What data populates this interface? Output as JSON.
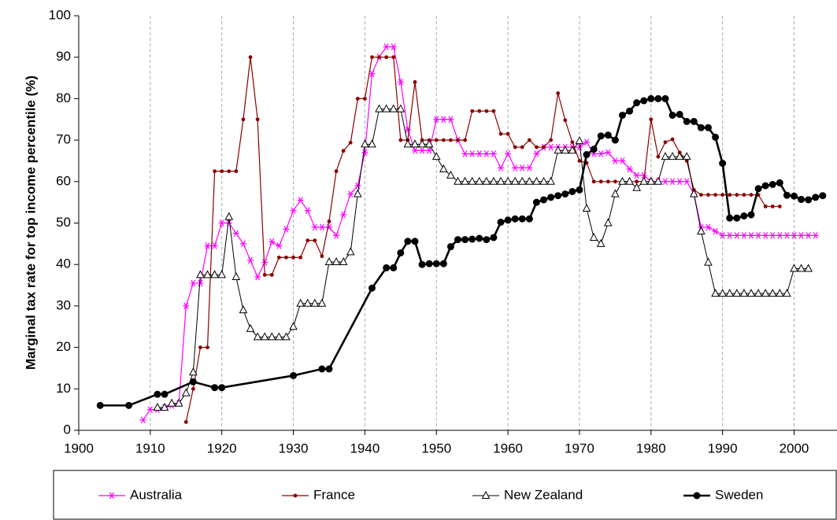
{
  "chart_data": {
    "type": "line",
    "ylabel": "Marginal tax rate for top income percentile (%)",
    "xlim": [
      1900,
      2006
    ],
    "ylim": [
      0,
      100
    ],
    "xticks": [
      1900,
      1910,
      1920,
      1930,
      1940,
      1950,
      1960,
      1970,
      1980,
      1990,
      2000
    ],
    "yticks": [
      0,
      10,
      20,
      30,
      40,
      50,
      60,
      70,
      80,
      90,
      100
    ],
    "grid": "x",
    "legend": "bottom",
    "series": [
      {
        "name": "Australia",
        "color": "#ff00ff",
        "marker": "asterisk",
        "x": [
          1909,
          1910,
          1911,
          1912,
          1913,
          1914,
          1915,
          1916,
          1917,
          1918,
          1919,
          1920,
          1921,
          1922,
          1923,
          1924,
          1925,
          1926,
          1927,
          1928,
          1929,
          1930,
          1931,
          1932,
          1933,
          1934,
          1935,
          1936,
          1937,
          1938,
          1939,
          1940,
          1941,
          1942,
          1943,
          1944,
          1945,
          1946,
          1947,
          1948,
          1949,
          1950,
          1951,
          1952,
          1953,
          1954,
          1955,
          1956,
          1957,
          1958,
          1959,
          1960,
          1961,
          1962,
          1963,
          1964,
          1965,
          1966,
          1967,
          1968,
          1969,
          1970,
          1971,
          1972,
          1973,
          1974,
          1975,
          1976,
          1977,
          1978,
          1979,
          1980,
          1981,
          1982,
          1983,
          1984,
          1985,
          1986,
          1987,
          1988,
          1989,
          1990,
          1991,
          1992,
          1993,
          1994,
          1995,
          1996,
          1997,
          1998,
          1999,
          2000,
          2001,
          2002,
          2003
        ],
        "values": [
          2.5,
          5,
          5,
          5.5,
          6,
          6.5,
          30,
          35.5,
          35.5,
          44.5,
          44.5,
          50,
          50,
          47.5,
          45,
          41,
          37,
          40.5,
          45.5,
          44.5,
          48.5,
          53,
          55.5,
          53,
          49,
          49,
          49,
          47,
          52,
          57,
          59,
          67,
          86,
          90,
          92.5,
          92.5,
          84,
          72.5,
          67.5,
          67.5,
          67.5,
          75,
          75,
          75,
          70,
          66.7,
          66.7,
          66.7,
          66.7,
          66.7,
          63.3,
          66.7,
          63.3,
          63.3,
          63.3,
          66.7,
          68.3,
          68.3,
          68.3,
          68.3,
          68.3,
          68.3,
          69.5,
          66.7,
          66.7,
          67,
          65,
          65,
          63,
          61.5,
          61.5,
          60,
          60,
          60,
          60,
          60,
          60,
          57,
          49,
          49,
          48,
          47,
          47,
          47,
          47,
          47,
          47,
          47,
          47,
          47,
          47,
          47,
          47,
          47,
          47
        ]
      },
      {
        "name": "France",
        "color": "#8b0000",
        "marker": "dot",
        "x": [
          1915,
          1916,
          1917,
          1918,
          1919,
          1920,
          1921,
          1922,
          1923,
          1924,
          1925,
          1926,
          1927,
          1928,
          1929,
          1930,
          1931,
          1932,
          1933,
          1934,
          1935,
          1936,
          1937,
          1938,
          1939,
          1940,
          1941,
          1942,
          1943,
          1944,
          1945,
          1946,
          1947,
          1948,
          1949,
          1950,
          1951,
          1952,
          1953,
          1954,
          1955,
          1956,
          1957,
          1958,
          1959,
          1960,
          1961,
          1962,
          1963,
          1964,
          1965,
          1966,
          1967,
          1968,
          1969,
          1970,
          1971,
          1972,
          1973,
          1974,
          1975,
          1976,
          1977,
          1978,
          1979,
          1980,
          1981,
          1982,
          1983,
          1984,
          1985,
          1986,
          1987,
          1988,
          1989,
          1990,
          1991,
          1992,
          1993,
          1994,
          1995,
          1996,
          1997,
          1998
        ],
        "values": [
          2,
          10,
          20,
          20,
          62.5,
          62.5,
          62.5,
          62.5,
          75,
          90,
          75,
          37.5,
          37.5,
          41.7,
          41.7,
          41.7,
          41.7,
          45.8,
          45.8,
          42,
          50.4,
          62.5,
          67.4,
          69.4,
          80,
          80,
          90,
          90,
          90,
          90,
          70,
          70,
          84,
          70,
          70,
          70,
          70,
          70,
          70,
          70,
          77,
          77,
          77,
          77,
          71.5,
          71.5,
          68.3,
          68.3,
          70,
          68.3,
          68.3,
          70,
          81.3,
          74.8,
          69.5,
          65,
          64.5,
          60,
          60,
          60,
          60,
          60,
          60,
          60,
          60,
          75,
          66,
          69.5,
          70.2,
          67,
          65,
          58,
          56.8,
          56.8,
          56.8,
          56.8,
          56.8,
          56.8,
          56.8,
          56.8,
          56.8,
          54,
          54,
          54
        ]
      },
      {
        "name": "New Zealand",
        "color": "#000000",
        "marker": "triangle",
        "x": [
          1911,
          1912,
          1913,
          1914,
          1915,
          1916,
          1917,
          1918,
          1919,
          1920,
          1921,
          1922,
          1923,
          1924,
          1925,
          1926,
          1927,
          1928,
          1929,
          1930,
          1931,
          1932,
          1933,
          1934,
          1935,
          1936,
          1937,
          1938,
          1939,
          1940,
          1941,
          1942,
          1943,
          1944,
          1945,
          1946,
          1947,
          1948,
          1949,
          1950,
          1951,
          1952,
          1953,
          1954,
          1955,
          1956,
          1957,
          1958,
          1959,
          1960,
          1961,
          1962,
          1963,
          1964,
          1965,
          1966,
          1967,
          1968,
          1969,
          1970,
          1971,
          1972,
          1973,
          1974,
          1975,
          1976,
          1977,
          1978,
          1979,
          1980,
          1981,
          1982,
          1983,
          1984,
          1985,
          1986,
          1987,
          1988,
          1989,
          1990,
          1991,
          1992,
          1993,
          1994,
          1995,
          1996,
          1997,
          1998,
          1999,
          2000,
          2001,
          2002
        ],
        "values": [
          5.5,
          5.5,
          6.5,
          6.5,
          9,
          14,
          37.5,
          37.5,
          37.5,
          37.5,
          51.5,
          37,
          29,
          24.5,
          22.5,
          22.5,
          22.5,
          22.5,
          22.5,
          25,
          30.6,
          30.6,
          30.6,
          30.6,
          40.6,
          40.6,
          40.6,
          43,
          57,
          69,
          69,
          77.5,
          77.5,
          77.5,
          77.5,
          69,
          69,
          69,
          69,
          66,
          63,
          61.5,
          60,
          60,
          60,
          60,
          60,
          60,
          60,
          60,
          60,
          60,
          60,
          60,
          60,
          60,
          67.5,
          67.5,
          67.5,
          69.8,
          53.5,
          46.5,
          45,
          50,
          57,
          60,
          60,
          58.5,
          60,
          60,
          60,
          66,
          66,
          66,
          66,
          57,
          48,
          40.5,
          33,
          33,
          33,
          33,
          33,
          33,
          33,
          33,
          33,
          33,
          33,
          39,
          39,
          39
        ]
      },
      {
        "name": "Sweden",
        "color": "#000000",
        "marker": "circle",
        "x": [
          1903,
          1907,
          1911,
          1912,
          1916,
          1919,
          1920,
          1930,
          1934,
          1935,
          1941,
          1943,
          1944,
          1945,
          1946,
          1947,
          1948,
          1949,
          1950,
          1951,
          1952,
          1953,
          1954,
          1955,
          1956,
          1957,
          1958,
          1959,
          1960,
          1961,
          1962,
          1963,
          1964,
          1965,
          1966,
          1967,
          1968,
          1969,
          1970,
          1971,
          1972,
          1973,
          1974,
          1975,
          1976,
          1977,
          1978,
          1979,
          1980,
          1981,
          1982,
          1983,
          1984,
          1985,
          1986,
          1987,
          1988,
          1989,
          1990,
          1991,
          1992,
          1993,
          1994,
          1995,
          1996,
          1997,
          1998,
          1999,
          2000,
          2001,
          2002,
          2003,
          2004
        ],
        "values": [
          6,
          6,
          8.7,
          8.7,
          11.7,
          10.3,
          10.3,
          13.2,
          14.8,
          14.8,
          34.3,
          39.2,
          39.2,
          42.8,
          45.6,
          45.6,
          40,
          40.2,
          40.2,
          40.2,
          44.3,
          46,
          46,
          46.1,
          46.3,
          46,
          46.5,
          50.2,
          50.7,
          51,
          51,
          51,
          55,
          55.6,
          56.2,
          56.6,
          57,
          57.6,
          58,
          66.5,
          67.8,
          71,
          71.2,
          70,
          76,
          77,
          79,
          79.5,
          80,
          80,
          80,
          76,
          76.2,
          74.5,
          74.5,
          73,
          73,
          70.7,
          64.4,
          51.2,
          51.2,
          51.7,
          52,
          58.3,
          59,
          59.3,
          59.7,
          56.7,
          56.5,
          55.7,
          55.6,
          56.2,
          56.6
        ]
      }
    ]
  }
}
